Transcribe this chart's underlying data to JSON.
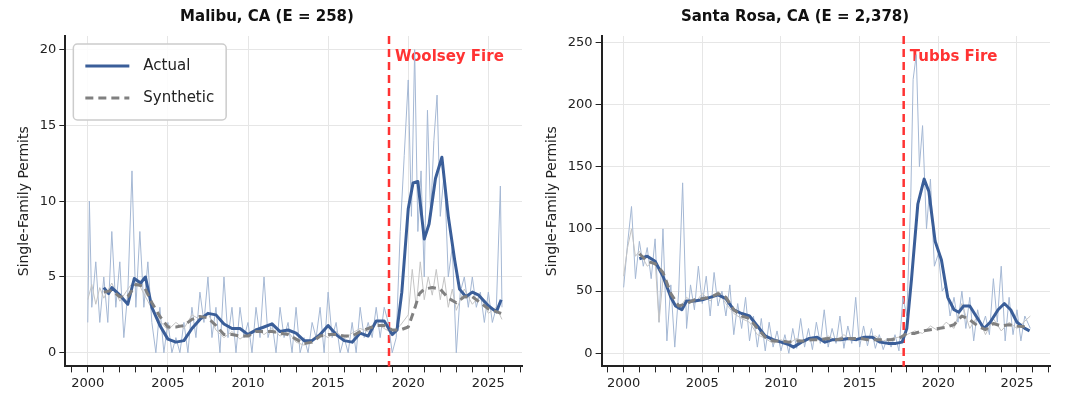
{
  "chart_data": [
    {
      "type": "line",
      "title": "Malibu, CA (E = 258)",
      "ylabel": "Single-Family Permits",
      "xlim": [
        1998.6,
        2027.1
      ],
      "ylim": [
        -0.9,
        20.9
      ],
      "xticks": [
        {
          "value": 1999,
          "label": null
        },
        2000,
        {
          "value": 2001,
          "label": null
        },
        {
          "value": 2002,
          "label": null
        },
        {
          "value": 2003,
          "label": null
        },
        {
          "value": 2004,
          "label": null
        },
        2005,
        {
          "value": 2006,
          "label": null
        },
        {
          "value": 2007,
          "label": null
        },
        {
          "value": 2008,
          "label": null
        },
        {
          "value": 2009,
          "label": null
        },
        2010,
        {
          "value": 2011,
          "label": null
        },
        {
          "value": 2012,
          "label": null
        },
        {
          "value": 2013,
          "label": null
        },
        {
          "value": 2014,
          "label": null
        },
        2015,
        {
          "value": 2016,
          "label": null
        },
        {
          "value": 2017,
          "label": null
        },
        {
          "value": 2018,
          "label": null
        },
        {
          "value": 2019,
          "label": null
        },
        2020,
        {
          "value": 2021,
          "label": null
        },
        {
          "value": 2022,
          "label": null
        },
        {
          "value": 2023,
          "label": null
        },
        {
          "value": 2024,
          "label": null
        },
        2025,
        {
          "value": 2026,
          "label": null
        },
        {
          "value": 2027,
          "label": null
        }
      ],
      "yticks": [
        0,
        5,
        10,
        15,
        20
      ],
      "grid": true,
      "legend": "top left",
      "marker": "none",
      "ref_lines": [
        {
          "axis": "x",
          "value": 2018.8,
          "label": "Woolsey Fire",
          "color": "#ff3333",
          "line_style": "dashed"
        }
      ],
      "series": [
        {
          "color": "#a5b8d4",
          "x": [
            2000,
            2000.1,
            2000.25,
            2000.5,
            2000.75,
            2001,
            2001.25,
            2001.5,
            2001.75,
            2002,
            2002.25,
            2002.5,
            2002.76,
            2003,
            2003.25,
            2003.5,
            2003.75,
            2004,
            2004.25,
            2004.5,
            2004.75,
            2005,
            2005.25,
            2005.5,
            2005.75,
            2006,
            2006.25,
            2006.5,
            2006.75,
            2007,
            2007.25,
            2007.5,
            2007.75,
            2008,
            2008.25,
            2008.5,
            2008.75,
            2009,
            2009.25,
            2009.5,
            2009.75,
            2010,
            2010.25,
            2010.5,
            2010.75,
            2011,
            2011.25,
            2011.5,
            2011.75,
            2012,
            2012.25,
            2012.5,
            2012.75,
            2013,
            2013.25,
            2013.5,
            2013.75,
            2014,
            2014.25,
            2014.5,
            2014.75,
            2015,
            2015.25,
            2015.5,
            2015.75,
            2016,
            2016.25,
            2016.5,
            2016.75,
            2017,
            2017.25,
            2017.5,
            2017.75,
            2018,
            2018.25,
            2018.5,
            2018.75,
            2019,
            2019.25,
            2019.5,
            2019.75,
            2020,
            2020.2,
            2020.4,
            2020.6,
            2020.8,
            2021,
            2021.2,
            2021.4,
            2021.6,
            2021.8,
            2022,
            2022.25,
            2022.5,
            2022.75,
            2023,
            2023.25,
            2023.5,
            2023.75,
            2024,
            2024.25,
            2024.5,
            2024.75,
            2025,
            2025.25,
            2025.5,
            2025.75,
            2025.85
          ],
          "values": [
            2,
            10,
            3,
            6,
            2,
            5,
            2,
            8,
            3,
            6,
            1,
            4,
            12,
            3,
            8,
            3,
            6,
            2,
            0,
            3,
            0,
            2,
            0,
            1,
            0,
            2,
            0,
            3,
            1,
            4,
            2,
            5,
            1,
            3,
            0,
            5,
            1,
            3,
            0,
            3,
            1,
            2,
            0,
            3,
            1,
            5,
            1,
            2,
            0,
            3,
            1,
            2,
            0,
            3,
            0,
            1,
            0,
            2,
            1,
            3,
            0,
            4,
            1,
            2,
            0,
            1,
            0,
            2,
            0,
            3,
            1,
            2,
            1,
            3,
            1,
            3,
            2,
            0,
            1,
            8,
            13,
            18,
            9,
            20,
            8,
            12,
            5,
            16,
            9,
            14,
            17,
            9,
            12,
            5,
            7,
            0,
            4,
            5,
            3,
            5,
            3,
            4,
            2,
            4,
            2,
            3,
            11,
            3
          ]
        },
        {
          "color": "#c4c4c4",
          "x": [
            2000,
            2000.25,
            2000.5,
            2000.75,
            2001,
            2001.5,
            2002,
            2002.5,
            2003,
            2003.5,
            2004,
            2004.5,
            2005,
            2005.5,
            2006,
            2006.5,
            2007,
            2007.5,
            2008,
            2008.5,
            2009,
            2009.5,
            2010,
            2010.5,
            2011,
            2011.5,
            2012,
            2012.5,
            2013,
            2013.5,
            2014,
            2014.5,
            2015,
            2015.5,
            2016,
            2016.5,
            2017,
            2017.5,
            2018,
            2018.5,
            2019,
            2019.5,
            2020,
            2020.25,
            2020.5,
            2020.75,
            2021,
            2021.25,
            2021.5,
            2021.75,
            2022,
            2022.25,
            2022.5,
            2022.75,
            2023,
            2023.5,
            2024,
            2024.5,
            2025,
            2025.5,
            2025.85
          ],
          "values": [
            3.5,
            4.5,
            3.2,
            4.3,
            3.6,
            4.6,
            3.4,
            4.2,
            4.9,
            3.9,
            2.9,
            2.1,
            1.5,
            2.0,
            1.6,
            2.5,
            2.2,
            2.6,
            1.5,
            1.0,
            1.4,
            0.9,
            1.3,
            1.6,
            1.2,
            1.6,
            1.1,
            1.4,
            0.7,
            0.5,
            0.9,
            1.3,
            1.0,
            1.4,
            0.9,
            1.3,
            1.6,
            1.4,
            2.0,
            1.6,
            1.3,
            1.8,
            2.5,
            5.5,
            3.0,
            6.0,
            3.5,
            5.0,
            3.8,
            5.5,
            3.5,
            5.0,
            3.0,
            4.2,
            2.8,
            4.2,
            3.2,
            3.8,
            2.6,
            3.0,
            2.2
          ]
        },
        {
          "name": "Actual",
          "color": "#3a5e99",
          "line_style": "solid",
          "x": [
            2001,
            2001.3,
            2001.5,
            2002,
            2002.5,
            2002.9,
            2003.3,
            2003.6,
            2004,
            2004.5,
            2005,
            2005.5,
            2006,
            2006.5,
            2007,
            2007.5,
            2008,
            2008.5,
            2009,
            2009.5,
            2010,
            2010.5,
            2011,
            2011.5,
            2012,
            2012.5,
            2013,
            2013.5,
            2014,
            2014.5,
            2015,
            2015.5,
            2016,
            2016.5,
            2017,
            2017.5,
            2018,
            2018.5,
            2019,
            2019.3,
            2019.6,
            2020,
            2020.3,
            2020.6,
            2021,
            2021.3,
            2021.7,
            2022.1,
            2022.5,
            2022.9,
            2023.2,
            2023.6,
            2024,
            2024.4,
            2025,
            2025.5,
            2025.8
          ],
          "values": [
            4.3,
            3.9,
            4.3,
            3.8,
            3.2,
            4.9,
            4.6,
            5.0,
            3.0,
            1.8,
            0.9,
            0.7,
            0.8,
            1.6,
            2.2,
            2.6,
            2.5,
            1.9,
            1.6,
            1.6,
            1.2,
            1.5,
            1.7,
            1.9,
            1.4,
            1.5,
            1.3,
            0.8,
            0.8,
            1.2,
            1.8,
            1.2,
            0.8,
            0.7,
            1.3,
            1.1,
            2.1,
            2.1,
            1.2,
            1.5,
            4,
            9.5,
            11.2,
            11.3,
            7.5,
            8.5,
            11.5,
            12.9,
            9,
            6.1,
            4.2,
            3.7,
            4.0,
            3.8,
            3.1,
            2.7,
            3.5
          ]
        },
        {
          "name": "Synthetic",
          "color": "#808080",
          "line_style": "dashed",
          "x": [
            2001,
            2001.5,
            2002,
            2002.5,
            2003,
            2003.5,
            2004,
            2004.5,
            2005,
            2005.5,
            2006,
            2006.5,
            2007,
            2007.5,
            2008,
            2008.5,
            2009,
            2009.5,
            2010,
            2010.5,
            2011,
            2011.5,
            2012,
            2012.5,
            2013,
            2013.5,
            2014,
            2014.5,
            2015,
            2015.5,
            2016,
            2016.5,
            2017,
            2017.5,
            2018,
            2018.5,
            2019,
            2019.5,
            2020,
            2020.3,
            2020.7,
            2021,
            2021.5,
            2022,
            2022.5,
            2023,
            2023.5,
            2024,
            2024.5,
            2025,
            2025.8
          ],
          "values": [
            4.0,
            4.1,
            3.7,
            3.7,
            4.5,
            4.4,
            3.3,
            2.4,
            1.7,
            1.7,
            1.8,
            2.2,
            2.4,
            2.3,
            1.8,
            1.2,
            1.2,
            1.1,
            1.1,
            1.4,
            1.4,
            1.4,
            1.3,
            1.2,
            0.9,
            0.6,
            0.7,
            1.1,
            1.2,
            1.2,
            1.1,
            1.1,
            1.4,
            1.6,
            1.8,
            1.8,
            1.5,
            1.5,
            1.7,
            2.6,
            3.9,
            4.2,
            4.3,
            4.2,
            3.6,
            3.3,
            3.7,
            3.7,
            3.3,
            2.9,
            2.6
          ]
        }
      ]
    },
    {
      "type": "line",
      "title": "Santa Rosa, CA (E = 2,378)",
      "ylabel": "Single-Family Permits",
      "xlim": [
        1998.6,
        2027.1
      ],
      "ylim": [
        -10.5,
        255
      ],
      "xticks": [
        {
          "value": 1999,
          "label": null
        },
        2000,
        {
          "value": 2001,
          "label": null
        },
        {
          "value": 2002,
          "label": null
        },
        {
          "value": 2003,
          "label": null
        },
        {
          "value": 2004,
          "label": null
        },
        2005,
        {
          "value": 2006,
          "label": null
        },
        {
          "value": 2007,
          "label": null
        },
        {
          "value": 2008,
          "label": null
        },
        {
          "value": 2009,
          "label": null
        },
        2010,
        {
          "value": 2011,
          "label": null
        },
        {
          "value": 2012,
          "label": null
        },
        {
          "value": 2013,
          "label": null
        },
        {
          "value": 2014,
          "label": null
        },
        2015,
        {
          "value": 2016,
          "label": null
        },
        {
          "value": 2017,
          "label": null
        },
        {
          "value": 2018,
          "label": null
        },
        {
          "value": 2019,
          "label": null
        },
        2020,
        {
          "value": 2021,
          "label": null
        },
        {
          "value": 2022,
          "label": null
        },
        {
          "value": 2023,
          "label": null
        },
        {
          "value": 2024,
          "label": null
        },
        2025,
        {
          "value": 2026,
          "label": null
        },
        {
          "value": 2027,
          "label": null
        }
      ],
      "yticks": [
        0,
        50,
        100,
        150,
        200,
        250
      ],
      "grid": true,
      "marker": "none",
      "ref_lines": [
        {
          "axis": "x",
          "value": 2017.8,
          "label": "Tubbs Fire",
          "color": "#ff3333",
          "line_style": "dashed"
        }
      ],
      "series": [
        {
          "color": "#a5b8d4",
          "x": [
            2000,
            2000.25,
            2000.5,
            2000.75,
            2001,
            2001.25,
            2001.5,
            2001.75,
            2002,
            2002.25,
            2002.5,
            2002.75,
            2003,
            2003.25,
            2003.5,
            2003.75,
            2004,
            2004.25,
            2004.5,
            2004.75,
            2005,
            2005.25,
            2005.5,
            2005.75,
            2006,
            2006.25,
            2006.5,
            2006.75,
            2007,
            2007.25,
            2007.5,
            2007.75,
            2008,
            2008.25,
            2008.5,
            2008.75,
            2009,
            2009.25,
            2009.5,
            2009.75,
            2010,
            2010.25,
            2010.5,
            2010.75,
            2011,
            2011.25,
            2011.5,
            2011.75,
            2012,
            2012.25,
            2012.5,
            2012.75,
            2013,
            2013.25,
            2013.5,
            2013.75,
            2014,
            2014.25,
            2014.5,
            2014.75,
            2015,
            2015.25,
            2015.5,
            2015.75,
            2016,
            2016.25,
            2016.5,
            2016.75,
            2017,
            2017.25,
            2017.5,
            2017.75,
            2018,
            2018.25,
            2018.4,
            2018.6,
            2018.8,
            2019,
            2019.25,
            2019.5,
            2019.75,
            2020,
            2020.25,
            2020.5,
            2020.75,
            2021,
            2021.25,
            2021.5,
            2021.75,
            2022,
            2022.25,
            2022.5,
            2022.75,
            2023,
            2023.25,
            2023.5,
            2023.75,
            2024,
            2024.25,
            2024.5,
            2024.75,
            2025,
            2025.25,
            2025.5,
            2025.85
          ],
          "values": [
            53,
            88,
            118,
            60,
            90,
            70,
            85,
            60,
            92,
            25,
            100,
            10,
            55,
            5,
            50,
            137,
            20,
            55,
            35,
            70,
            40,
            62,
            30,
            65,
            38,
            50,
            30,
            55,
            15,
            40,
            20,
            45,
            10,
            30,
            5,
            28,
            2,
            25,
            5,
            18,
            2,
            15,
            0,
            20,
            4,
            28,
            5,
            20,
            3,
            25,
            8,
            35,
            5,
            20,
            8,
            30,
            4,
            22,
            8,
            45,
            5,
            22,
            6,
            20,
            4,
            15,
            3,
            12,
            5,
            15,
            2,
            45,
            30,
            125,
            220,
            240,
            150,
            183,
            100,
            140,
            70,
            80,
            50,
            55,
            30,
            45,
            25,
            50,
            20,
            45,
            10,
            35,
            20,
            30,
            15,
            60,
            25,
            70,
            10,
            45,
            15,
            35,
            10,
            30,
            20
          ]
        },
        {
          "color": "#c4c4c4",
          "x": [
            2000,
            2000.25,
            2000.5,
            2000.75,
            2001,
            2001.5,
            2002,
            2002.25,
            2002.5,
            2003,
            2003.5,
            2004,
            2004.5,
            2005,
            2005.5,
            2006,
            2006.5,
            2007,
            2007.5,
            2008,
            2008.5,
            2009,
            2009.5,
            2010,
            2010.5,
            2011,
            2011.5,
            2012,
            2012.5,
            2013,
            2013.5,
            2014,
            2014.5,
            2015,
            2015.5,
            2016,
            2016.5,
            2017,
            2017.5,
            2018,
            2018.5,
            2019,
            2019.5,
            2020,
            2020.5,
            2021,
            2021.5,
            2022,
            2022.5,
            2023,
            2023.5,
            2024,
            2024.5,
            2025,
            2025.85
          ],
          "values": [
            62,
            85,
            100,
            78,
            82,
            70,
            75,
            25,
            60,
            45,
            35,
            45,
            40,
            48,
            42,
            50,
            40,
            32,
            28,
            25,
            15,
            12,
            8,
            11,
            8,
            12,
            9,
            13,
            10,
            14,
            10,
            15,
            10,
            13,
            12,
            14,
            10,
            12,
            13,
            15,
            18,
            16,
            22,
            18,
            25,
            20,
            40,
            20,
            30,
            15,
            28,
            18,
            25,
            20,
            30
          ]
        },
        {
          "color": "#3a5e99",
          "line_style": "solid",
          "x": [
            2001,
            2001.5,
            2002,
            2002.5,
            2003,
            2003.3,
            2003.7,
            2004,
            2004.5,
            2005,
            2005.5,
            2006,
            2006.5,
            2007,
            2007.5,
            2008,
            2008.5,
            2009,
            2009.5,
            2010,
            2010.5,
            2010.8,
            2011.3,
            2011.8,
            2012.3,
            2012.8,
            2013.3,
            2013.8,
            2014.3,
            2014.8,
            2015.3,
            2015.8,
            2016.3,
            2016.8,
            2017.3,
            2017.7,
            2018,
            2018.3,
            2018.7,
            2019.1,
            2019.4,
            2019.8,
            2020.2,
            2020.6,
            2021,
            2021.3,
            2021.6,
            2022,
            2022.4,
            2022.9,
            2023.3,
            2023.8,
            2024.2,
            2024.6,
            2025,
            2025.5,
            2025.8
          ],
          "values": [
            76,
            78,
            74,
            62,
            45,
            38,
            35,
            42,
            42,
            43,
            45,
            47,
            44,
            35,
            32,
            30,
            22,
            14,
            11,
            9,
            7,
            5,
            9,
            12,
            13,
            9,
            11,
            11,
            12,
            11,
            13,
            13,
            9,
            8,
            8,
            9,
            20,
            60,
            120,
            140,
            130,
            90,
            75,
            45,
            35,
            33,
            38,
            38,
            30,
            20,
            25,
            35,
            40,
            35,
            25,
            20,
            18
          ]
        },
        {
          "color": "#808080",
          "line_style": "dashed",
          "x": [
            2001,
            2001.5,
            2002,
            2002.5,
            2003,
            2003.5,
            2004,
            2004.5,
            2005,
            2005.5,
            2006,
            2006.5,
            2007,
            2007.5,
            2008,
            2008.5,
            2009,
            2009.5,
            2010,
            2010.5,
            2011,
            2011.5,
            2012,
            2012.5,
            2013,
            2013.5,
            2014,
            2014.5,
            2015,
            2015.5,
            2016,
            2016.5,
            2017,
            2017.5,
            2018,
            2018.5,
            2019,
            2019.5,
            2020,
            2020.5,
            2021,
            2021.5,
            2022,
            2022.5,
            2023,
            2023.5,
            2024,
            2024.5,
            2025,
            2025.8
          ],
          "values": [
            80,
            74,
            72,
            65,
            48,
            38,
            40,
            43,
            44,
            45,
            48,
            45,
            35,
            30,
            28,
            20,
            13,
            10,
            10,
            9,
            10,
            10,
            11,
            11,
            12,
            11,
            12,
            12,
            12,
            11,
            11,
            11,
            11,
            12,
            16,
            16,
            18,
            19,
            20,
            21,
            23,
            30,
            27,
            22,
            19,
            24,
            22,
            23,
            22,
            21
          ]
        }
      ]
    }
  ]
}
